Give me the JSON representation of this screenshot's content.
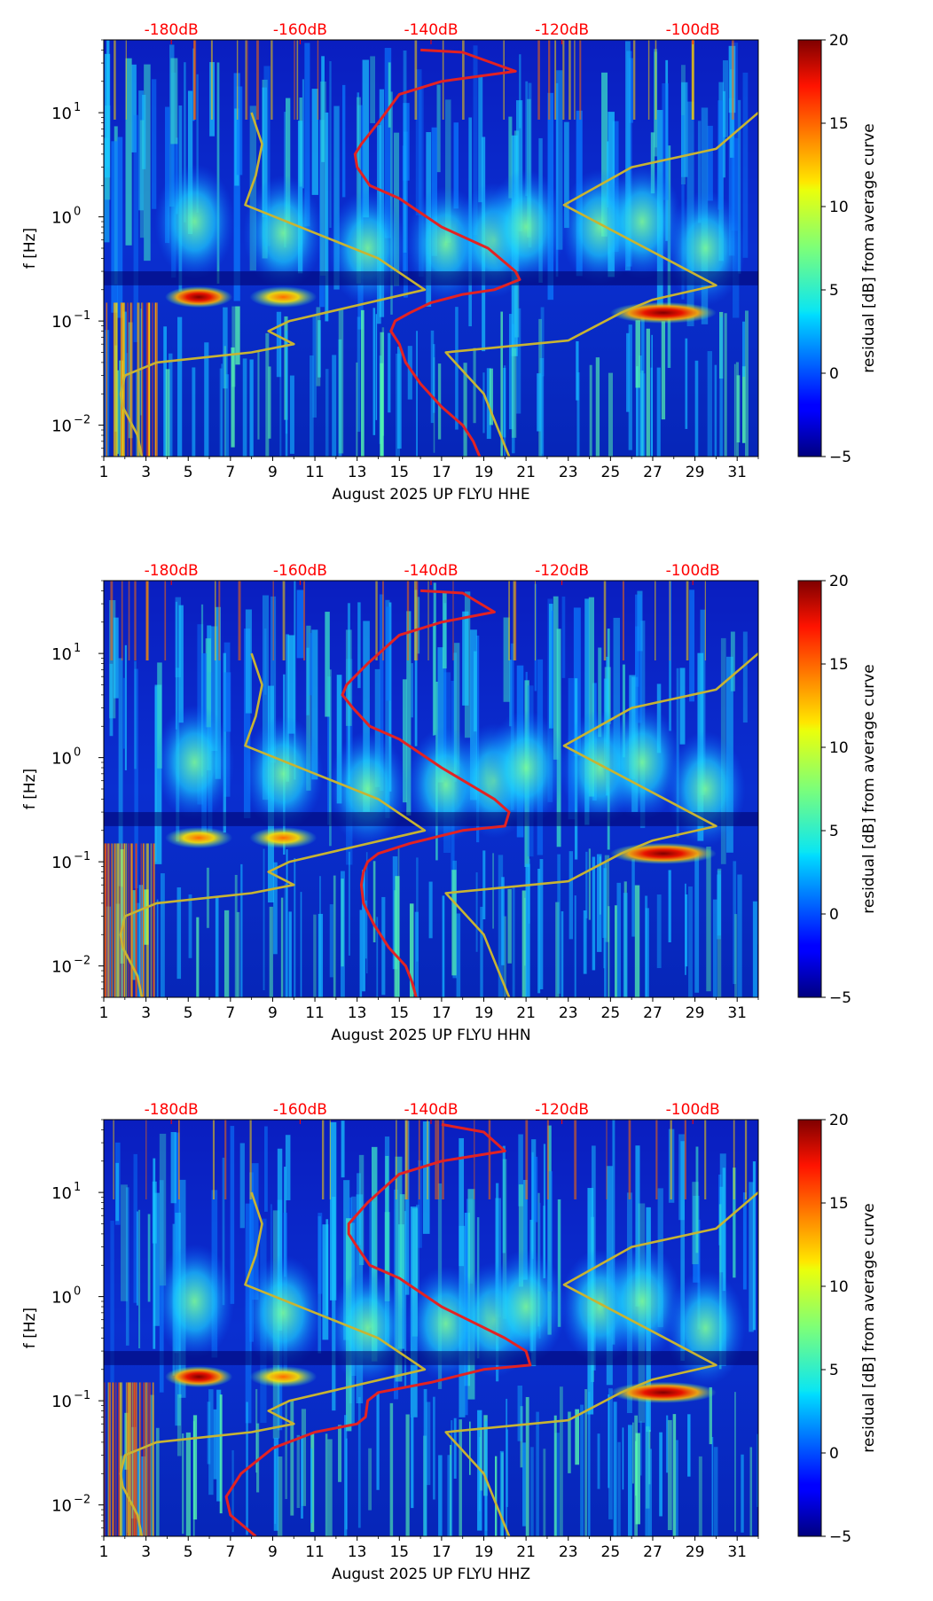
{
  "chart_data": [
    {
      "type": "heatmap",
      "channel": "HHE",
      "xlabel": "August 2025 UP FLYU  HHE",
      "ylabel": "f [Hz]",
      "x_ticks": [
        "1",
        "3",
        "5",
        "7",
        "9",
        "11",
        "13",
        "15",
        "17",
        "19",
        "21",
        "23",
        "25",
        "27",
        "29",
        "31"
      ],
      "xlim": [
        1,
        32
      ],
      "y_ticks": [
        {
          "value": 10,
          "base": "10",
          "exp": "1"
        },
        {
          "value": 1,
          "base": "10",
          "exp": "0"
        },
        {
          "value": 0.1,
          "base": "10",
          "exp": "−1"
        },
        {
          "value": 0.01,
          "base": "10",
          "exp": "−2"
        }
      ],
      "ylim": [
        0.005,
        50
      ],
      "top_axis_labels": [
        "-180dB",
        "-160dB",
        "-140dB",
        "-120dB",
        "-100dB"
      ],
      "top_axis_day": [
        4.2,
        10.3,
        16.5,
        22.7,
        28.9
      ],
      "colorbar": {
        "label": "residual [dB] from average curve",
        "ticks": [
          "20",
          "15",
          "10",
          "5",
          "0",
          "−5"
        ],
        "range": [
          -5,
          20
        ]
      },
      "warm_patches": [
        {
          "day": 5.5,
          "freq": 0.17,
          "amp": 20
        },
        {
          "day": 9.5,
          "freq": 0.17,
          "amp": 15
        },
        {
          "day": 27.5,
          "freq": 0.12,
          "amp": 20
        }
      ],
      "series": [
        {
          "name": "noise model (yellow)",
          "color": "#c8b432",
          "points": [
            [
              8,
              10
            ],
            [
              8.5,
              5
            ],
            [
              8.2,
              2.5
            ],
            [
              7.7,
              1.3
            ],
            [
              11,
              0.7
            ],
            [
              14,
              0.4
            ],
            [
              16.2,
              0.2
            ],
            [
              9.8,
              0.1
            ],
            [
              8.8,
              0.08
            ],
            [
              10,
              0.06
            ],
            [
              8,
              0.05
            ],
            [
              3.5,
              0.04
            ],
            [
              2,
              0.03
            ],
            [
              1.8,
              0.02
            ],
            [
              1.9,
              0.015
            ],
            [
              2.6,
              0.008
            ],
            [
              2.8,
              0.005
            ]
          ]
        },
        {
          "name": "noise model (yellow) right",
          "color": "#c8b432",
          "points": [
            [
              32,
              10
            ],
            [
              30,
              4.5
            ],
            [
              26,
              3
            ],
            [
              22.8,
              1.3
            ],
            [
              30,
              0.22
            ],
            [
              27,
              0.16
            ],
            [
              25.5,
              0.12
            ],
            [
              23,
              0.065
            ],
            [
              17.2,
              0.05
            ],
            [
              19,
              0.02
            ],
            [
              20.2,
              0.005
            ]
          ]
        },
        {
          "name": "median PSD (red)",
          "color": "#e32222",
          "points": [
            [
              16,
              40
            ],
            [
              18,
              38
            ],
            [
              20.5,
              25
            ],
            [
              17,
              20
            ],
            [
              15,
              15
            ],
            [
              14,
              8
            ],
            [
              13.2,
              5
            ],
            [
              12.9,
              4
            ],
            [
              13,
              3
            ],
            [
              13.6,
              2
            ],
            [
              15,
              1.5
            ],
            [
              17,
              0.8
            ],
            [
              19.2,
              0.5
            ],
            [
              20.5,
              0.3
            ],
            [
              20.7,
              0.25
            ],
            [
              19.5,
              0.2
            ],
            [
              18,
              0.18
            ],
            [
              16.5,
              0.15
            ],
            [
              15.5,
              0.12
            ],
            [
              14.8,
              0.1
            ],
            [
              14.6,
              0.08
            ],
            [
              15,
              0.06
            ],
            [
              15.3,
              0.04
            ],
            [
              16,
              0.025
            ],
            [
              17,
              0.015
            ],
            [
              18,
              0.01
            ],
            [
              18.5,
              0.007
            ],
            [
              18.8,
              0.005
            ]
          ]
        }
      ]
    },
    {
      "type": "heatmap",
      "channel": "HHN",
      "xlabel": "August 2025 UP FLYU  HHN",
      "ylabel": "f [Hz]",
      "x_ticks": [
        "1",
        "3",
        "5",
        "7",
        "9",
        "11",
        "13",
        "15",
        "17",
        "19",
        "21",
        "23",
        "25",
        "27",
        "29",
        "31"
      ],
      "xlim": [
        1,
        32
      ],
      "y_ticks": [
        {
          "value": 10,
          "base": "10",
          "exp": "1"
        },
        {
          "value": 1,
          "base": "10",
          "exp": "0"
        },
        {
          "value": 0.1,
          "base": "10",
          "exp": "−1"
        },
        {
          "value": 0.01,
          "base": "10",
          "exp": "−2"
        }
      ],
      "ylim": [
        0.005,
        50
      ],
      "top_axis_labels": [
        "-180dB",
        "-160dB",
        "-140dB",
        "-120dB",
        "-100dB"
      ],
      "top_axis_day": [
        4.2,
        10.3,
        16.5,
        22.7,
        28.9
      ],
      "colorbar": {
        "label": "residual [dB] from average curve",
        "ticks": [
          "20",
          "15",
          "10",
          "5",
          "0",
          "−5"
        ],
        "range": [
          -5,
          20
        ]
      },
      "warm_patches": [
        {
          "day": 5.5,
          "freq": 0.17,
          "amp": 15
        },
        {
          "day": 9.5,
          "freq": 0.17,
          "amp": 14
        },
        {
          "day": 27.5,
          "freq": 0.12,
          "amp": 20
        }
      ],
      "series": [
        {
          "name": "noise model (yellow)",
          "color": "#c8b432",
          "points": [
            [
              8,
              10
            ],
            [
              8.5,
              5
            ],
            [
              8.2,
              2.5
            ],
            [
              7.7,
              1.3
            ],
            [
              11,
              0.7
            ],
            [
              14,
              0.4
            ],
            [
              16.2,
              0.2
            ],
            [
              9.8,
              0.1
            ],
            [
              8.8,
              0.08
            ],
            [
              10,
              0.06
            ],
            [
              8,
              0.05
            ],
            [
              3.5,
              0.04
            ],
            [
              2,
              0.03
            ],
            [
              1.8,
              0.02
            ],
            [
              1.9,
              0.015
            ],
            [
              2.6,
              0.008
            ],
            [
              2.8,
              0.005
            ]
          ]
        },
        {
          "name": "noise model (yellow) right",
          "color": "#c8b432",
          "points": [
            [
              32,
              10
            ],
            [
              30,
              4.5
            ],
            [
              26,
              3
            ],
            [
              22.8,
              1.3
            ],
            [
              30,
              0.22
            ],
            [
              27,
              0.16
            ],
            [
              25.5,
              0.12
            ],
            [
              23,
              0.065
            ],
            [
              17.2,
              0.05
            ],
            [
              19,
              0.02
            ],
            [
              20.2,
              0.005
            ]
          ]
        },
        {
          "name": "median PSD (red)",
          "color": "#e32222",
          "points": [
            [
              16,
              40
            ],
            [
              18,
              38
            ],
            [
              19.5,
              25
            ],
            [
              17,
              20
            ],
            [
              15,
              15
            ],
            [
              13.5,
              8
            ],
            [
              12.5,
              5
            ],
            [
              12.3,
              4
            ],
            [
              12.8,
              3
            ],
            [
              13.6,
              2
            ],
            [
              15,
              1.5
            ],
            [
              17,
              0.8
            ],
            [
              19.5,
              0.4
            ],
            [
              20.2,
              0.3
            ],
            [
              20,
              0.22
            ],
            [
              18,
              0.2
            ],
            [
              15.5,
              0.15
            ],
            [
              14,
              0.12
            ],
            [
              13.5,
              0.1
            ],
            [
              13.3,
              0.08
            ],
            [
              13.2,
              0.06
            ],
            [
              13.3,
              0.04
            ],
            [
              13.8,
              0.025
            ],
            [
              14.5,
              0.015
            ],
            [
              15.3,
              0.01
            ],
            [
              15.6,
              0.007
            ],
            [
              15.8,
              0.005
            ]
          ]
        }
      ]
    },
    {
      "type": "heatmap",
      "channel": "HHZ",
      "xlabel": "August 2025 UP FLYU  HHZ",
      "ylabel": "f [Hz]",
      "x_ticks": [
        "1",
        "3",
        "5",
        "7",
        "9",
        "11",
        "13",
        "15",
        "17",
        "19",
        "21",
        "23",
        "25",
        "27",
        "29",
        "31"
      ],
      "xlim": [
        1,
        32
      ],
      "y_ticks": [
        {
          "value": 10,
          "base": "10",
          "exp": "1"
        },
        {
          "value": 1,
          "base": "10",
          "exp": "0"
        },
        {
          "value": 0.1,
          "base": "10",
          "exp": "−1"
        },
        {
          "value": 0.01,
          "base": "10",
          "exp": "−2"
        }
      ],
      "ylim": [
        0.005,
        50
      ],
      "top_axis_labels": [
        "-180dB",
        "-160dB",
        "-140dB",
        "-120dB",
        "-100dB"
      ],
      "top_axis_day": [
        4.2,
        10.3,
        16.5,
        22.7,
        28.9
      ],
      "colorbar": {
        "label": "residual [dB] from average curve",
        "ticks": [
          "20",
          "15",
          "10",
          "5",
          "0",
          "−5"
        ],
        "range": [
          -5,
          20
        ]
      },
      "warm_patches": [
        {
          "day": 5.5,
          "freq": 0.17,
          "amp": 20
        },
        {
          "day": 9.5,
          "freq": 0.17,
          "amp": 15
        },
        {
          "day": 27.5,
          "freq": 0.12,
          "amp": 20
        }
      ],
      "series": [
        {
          "name": "noise model (yellow)",
          "color": "#c8b432",
          "points": [
            [
              8,
              10
            ],
            [
              8.5,
              5
            ],
            [
              8.2,
              2.5
            ],
            [
              7.7,
              1.3
            ],
            [
              11,
              0.7
            ],
            [
              14,
              0.4
            ],
            [
              16.2,
              0.2
            ],
            [
              9.8,
              0.1
            ],
            [
              8.8,
              0.08
            ],
            [
              10,
              0.06
            ],
            [
              8,
              0.05
            ],
            [
              3.5,
              0.04
            ],
            [
              2,
              0.03
            ],
            [
              1.8,
              0.02
            ],
            [
              1.9,
              0.015
            ],
            [
              2.6,
              0.008
            ],
            [
              2.8,
              0.005
            ]
          ]
        },
        {
          "name": "noise model (yellow) right",
          "color": "#c8b432",
          "points": [
            [
              32,
              10
            ],
            [
              30,
              4.5
            ],
            [
              26,
              3
            ],
            [
              22.8,
              1.3
            ],
            [
              30,
              0.22
            ],
            [
              27,
              0.16
            ],
            [
              25.5,
              0.12
            ],
            [
              23,
              0.065
            ],
            [
              17.2,
              0.05
            ],
            [
              19,
              0.02
            ],
            [
              20.2,
              0.005
            ]
          ]
        },
        {
          "name": "median PSD (red)",
          "color": "#e32222",
          "points": [
            [
              17,
              45
            ],
            [
              19,
              38
            ],
            [
              20,
              25
            ],
            [
              17,
              20
            ],
            [
              15,
              15
            ],
            [
              13.5,
              8
            ],
            [
              12.6,
              5
            ],
            [
              12.6,
              4
            ],
            [
              13,
              3
            ],
            [
              13.6,
              2
            ],
            [
              15,
              1.5
            ],
            [
              17,
              0.8
            ],
            [
              20,
              0.4
            ],
            [
              21,
              0.3
            ],
            [
              21.2,
              0.22
            ],
            [
              19,
              0.2
            ],
            [
              16.5,
              0.15
            ],
            [
              14,
              0.12
            ],
            [
              13.5,
              0.1
            ],
            [
              13.4,
              0.07
            ],
            [
              13,
              0.06
            ],
            [
              11,
              0.05
            ],
            [
              9,
              0.035
            ],
            [
              7.5,
              0.02
            ],
            [
              6.8,
              0.012
            ],
            [
              7,
              0.008
            ],
            [
              8.2,
              0.005
            ]
          ]
        }
      ]
    }
  ]
}
